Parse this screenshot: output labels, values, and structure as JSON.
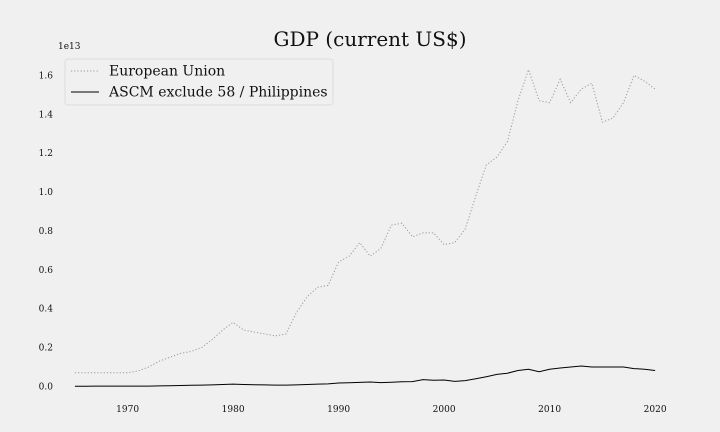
{
  "chart_data": {
    "type": "line",
    "title": "GDP (current US$)",
    "y_scale_label": "1e13",
    "xlabel": "",
    "ylabel": "",
    "xlim": [
      1963.4,
      2021.6
    ],
    "ylim": [
      -0.08,
      1.7
    ],
    "x_ticks": [
      1970,
      1980,
      1990,
      2000,
      2010,
      2020
    ],
    "y_ticks": [
      0.0,
      0.2,
      0.4,
      0.6,
      0.8,
      1.0,
      1.2,
      1.4,
      1.6
    ],
    "y_tick_labels": [
      "0.0",
      "0.2",
      "0.4",
      "0.6",
      "0.8",
      "1.0",
      "1.2",
      "1.4",
      "1.6"
    ],
    "grid": false,
    "legend_position": "top-left",
    "x": [
      1965,
      1966,
      1967,
      1968,
      1969,
      1970,
      1971,
      1972,
      1973,
      1974,
      1975,
      1976,
      1977,
      1978,
      1979,
      1980,
      1981,
      1982,
      1983,
      1984,
      1985,
      1986,
      1987,
      1988,
      1989,
      1990,
      1991,
      1992,
      1993,
      1994,
      1995,
      1996,
      1997,
      1998,
      1999,
      2000,
      2001,
      2002,
      2003,
      2004,
      2005,
      2006,
      2007,
      2008,
      2009,
      2010,
      2011,
      2012,
      2013,
      2014,
      2015,
      2016,
      2017,
      2018,
      2019,
      2020
    ],
    "series": [
      {
        "name": "European Union",
        "style": "dotted",
        "color": "#999999",
        "values": [
          0.07,
          0.07,
          0.07,
          0.07,
          0.07,
          0.07,
          0.08,
          0.1,
          0.13,
          0.15,
          0.17,
          0.18,
          0.2,
          0.24,
          0.29,
          0.33,
          0.29,
          0.28,
          0.27,
          0.26,
          0.27,
          0.38,
          0.46,
          0.51,
          0.52,
          0.64,
          0.67,
          0.74,
          0.67,
          0.71,
          0.83,
          0.84,
          0.77,
          0.79,
          0.79,
          0.73,
          0.74,
          0.81,
          0.98,
          1.14,
          1.18,
          1.26,
          1.47,
          1.63,
          1.47,
          1.46,
          1.58,
          1.46,
          1.53,
          1.56,
          1.36,
          1.38,
          1.46,
          1.6,
          1.57,
          1.53
        ]
      },
      {
        "name": "ASCM exclude 58 / Philippines",
        "style": "solid",
        "color": "#000000",
        "values": [
          0.001,
          0.001,
          0.002,
          0.002,
          0.002,
          0.002,
          0.002,
          0.002,
          0.003,
          0.004,
          0.005,
          0.006,
          0.007,
          0.008,
          0.01,
          0.012,
          0.01,
          0.009,
          0.008,
          0.007,
          0.007,
          0.008,
          0.01,
          0.012,
          0.013,
          0.018,
          0.019,
          0.021,
          0.023,
          0.02,
          0.022,
          0.024,
          0.025,
          0.035,
          0.032,
          0.033,
          0.026,
          0.03,
          0.04,
          0.05,
          0.062,
          0.068,
          0.082,
          0.088,
          0.076,
          0.088,
          0.095,
          0.1,
          0.105,
          0.1,
          0.1,
          0.1,
          0.1,
          0.092,
          0.088,
          0.082
        ]
      }
    ]
  }
}
